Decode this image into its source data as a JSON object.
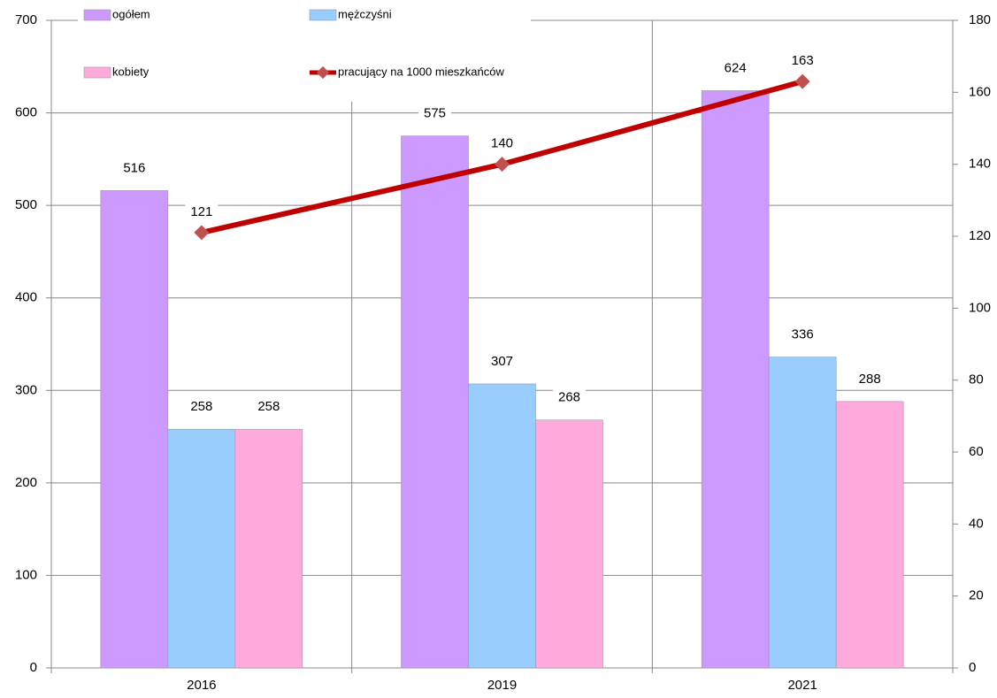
{
  "chart_data": {
    "type": "bar",
    "categories": [
      "2016",
      "2019",
      "2021"
    ],
    "series": [
      {
        "name": "ogółem",
        "color": "#cc99ff",
        "values": [
          516,
          575,
          624
        ]
      },
      {
        "name": "mężczyśni",
        "color": "#99ccff",
        "values": [
          258,
          307,
          336
        ]
      },
      {
        "name": "kobiety",
        "color": "#ffaadd",
        "values": [
          258,
          268,
          288
        ]
      },
      {
        "name": "pracujący na 1000 mieszkańców",
        "type": "line",
        "axis": "y2",
        "color": "#c00000",
        "marker_color": "#c0504d",
        "values": [
          121,
          140,
          163
        ]
      }
    ],
    "ylim": [
      0,
      700
    ],
    "yticks": [
      0,
      100,
      200,
      300,
      400,
      500,
      600,
      700
    ],
    "y2lim": [
      0,
      180
    ],
    "y2ticks": [
      0,
      20,
      40,
      60,
      80,
      100,
      120,
      140,
      160,
      180
    ],
    "grid": true
  }
}
